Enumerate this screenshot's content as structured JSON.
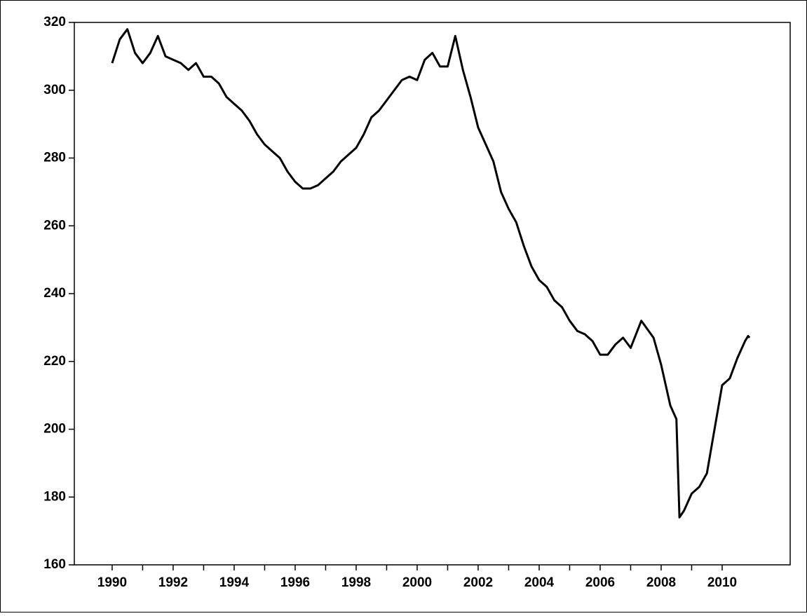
{
  "chart_data": {
    "type": "line",
    "x": [
      1990.0,
      1990.25,
      1990.5,
      1990.75,
      1991.0,
      1991.25,
      1991.5,
      1991.75,
      1992.0,
      1992.25,
      1992.5,
      1992.75,
      1993.0,
      1993.25,
      1993.5,
      1993.75,
      1994.0,
      1994.25,
      1994.5,
      1994.75,
      1995.0,
      1995.25,
      1995.5,
      1995.75,
      1996.0,
      1996.25,
      1996.5,
      1996.75,
      1997.0,
      1997.25,
      1997.5,
      1997.75,
      1998.0,
      1998.25,
      1998.5,
      1998.75,
      1999.0,
      1999.25,
      1999.5,
      1999.75,
      2000.0,
      2000.25,
      2000.5,
      2000.75,
      2001.0,
      2001.25,
      2001.5,
      2001.75,
      2002.0,
      2002.25,
      2002.5,
      2002.75,
      2003.0,
      2003.25,
      2003.5,
      2003.75,
      2004.0,
      2004.25,
      2004.5,
      2004.75,
      2005.0,
      2005.25,
      2005.5,
      2005.75,
      2006.0,
      2006.25,
      2006.5,
      2006.75,
      2007.0,
      2007.35,
      2007.75,
      2008.0,
      2008.3,
      2008.5,
      2008.6,
      2008.75,
      2009.0,
      2009.25,
      2009.5,
      2009.75,
      2010.0,
      2010.25,
      2010.5,
      2010.75,
      2010.85,
      2010.9
    ],
    "series": [
      {
        "color": "#000000",
        "values": [
          308,
          315,
          318,
          311,
          308,
          311,
          316,
          310,
          309,
          308,
          306,
          308,
          304,
          304,
          302,
          298,
          296,
          294,
          291,
          287,
          284,
          282,
          280,
          276,
          273,
          271,
          271,
          272,
          274,
          276,
          279,
          281,
          283,
          287,
          292,
          294,
          297,
          300,
          303,
          304,
          303,
          309,
          311,
          307,
          307,
          316,
          306,
          298,
          289,
          284,
          279,
          270,
          265,
          261,
          254,
          248,
          244,
          242,
          238,
          236,
          232,
          229,
          228,
          226,
          222,
          222,
          225,
          227,
          224,
          232,
          227,
          219,
          207,
          203,
          174,
          176,
          181,
          183,
          187,
          200,
          213,
          215,
          221,
          226,
          227.5,
          227
        ]
      }
    ],
    "xlim": [
      1988.76,
      2012.23
    ],
    "xticks": [
      1990,
      1992,
      1994,
      1996,
      1998,
      2000,
      2002,
      2004,
      2006,
      2008,
      2010
    ],
    "xminorticks": [
      1991,
      1993,
      1995,
      1997,
      1999,
      2001,
      2003,
      2005,
      2007,
      2009
    ],
    "ylim": [
      160,
      320
    ],
    "yticks": [
      160,
      180,
      200,
      220,
      240,
      260,
      280,
      300,
      320
    ]
  }
}
